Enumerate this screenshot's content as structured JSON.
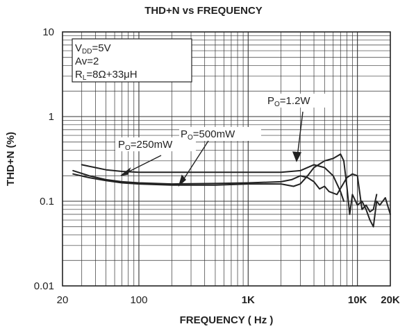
{
  "chart_data": {
    "type": "line",
    "title": "THD+N vs FREQUENCY",
    "xlabel": "FREQUENCY ( Hz )",
    "ylabel": "THD+N (%)",
    "x_scale": "log",
    "y_scale": "log",
    "xlim": [
      20,
      20000
    ],
    "ylim": [
      0.01,
      10
    ],
    "x_ticks": [
      {
        "value": 20,
        "label": "20"
      },
      {
        "value": 100,
        "label": "100"
      },
      {
        "value": 1000,
        "label": "1K"
      },
      {
        "value": 10000,
        "label": "10K"
      },
      {
        "value": 20000,
        "label": "20K"
      }
    ],
    "y_ticks": [
      {
        "value": 0.01,
        "label": "0.01"
      },
      {
        "value": 0.1,
        "label": "0.1"
      },
      {
        "value": 1,
        "label": "1"
      },
      {
        "value": 10,
        "label": "10"
      }
    ],
    "grid": true,
    "conditions": {
      "vdd_sym": "V",
      "vdd_sub": "DD",
      "vdd_val": "=5V",
      "av": "Av=2",
      "rl_sym": "R",
      "rl_sub": "L",
      "rl_val": "=8Ω+33μH"
    },
    "series": [
      {
        "label_sym": "P",
        "label_sub": "O",
        "label_val": "=250mW",
        "points": [
          [
            30,
            0.27
          ],
          [
            40,
            0.25
          ],
          [
            50,
            0.235
          ],
          [
            70,
            0.225
          ],
          [
            100,
            0.22
          ],
          [
            200,
            0.22
          ],
          [
            500,
            0.22
          ],
          [
            1000,
            0.22
          ],
          [
            2000,
            0.22
          ],
          [
            3000,
            0.23
          ],
          [
            4000,
            0.27
          ],
          [
            5000,
            0.25
          ],
          [
            6000,
            0.2
          ],
          [
            7000,
            0.13
          ],
          [
            7500,
            0.1
          ]
        ]
      },
      {
        "label_sym": "P",
        "label_sub": "O",
        "label_val": "=500mW",
        "points": [
          [
            25,
            0.23
          ],
          [
            35,
            0.2
          ],
          [
            50,
            0.18
          ],
          [
            70,
            0.17
          ],
          [
            100,
            0.165
          ],
          [
            200,
            0.16
          ],
          [
            500,
            0.162
          ],
          [
            1000,
            0.165
          ],
          [
            2000,
            0.17
          ],
          [
            2500,
            0.18
          ],
          [
            3000,
            0.2
          ],
          [
            3500,
            0.19
          ],
          [
            4000,
            0.17
          ],
          [
            4500,
            0.14
          ],
          [
            5000,
            0.15
          ],
          [
            5500,
            0.13
          ],
          [
            6500,
            0.12
          ],
          [
            8000,
            0.19
          ],
          [
            9000,
            0.21
          ],
          [
            10000,
            0.2
          ],
          [
            11000,
            0.08
          ],
          [
            12000,
            0.09
          ],
          [
            13000,
            0.075
          ],
          [
            14000,
            0.08
          ],
          [
            15000,
            0.12
          ]
        ]
      },
      {
        "label_sym": "P",
        "label_sub": "O",
        "label_val": "=1.2W",
        "points": [
          [
            25,
            0.21
          ],
          [
            35,
            0.19
          ],
          [
            50,
            0.175
          ],
          [
            70,
            0.165
          ],
          [
            100,
            0.16
          ],
          [
            200,
            0.155
          ],
          [
            500,
            0.155
          ],
          [
            1000,
            0.16
          ],
          [
            2000,
            0.16
          ],
          [
            2600,
            0.15
          ],
          [
            3000,
            0.16
          ],
          [
            3500,
            0.2
          ],
          [
            4000,
            0.25
          ],
          [
            5000,
            0.3
          ],
          [
            6000,
            0.32
          ],
          [
            7000,
            0.36
          ],
          [
            7500,
            0.3
          ],
          [
            8000,
            0.15
          ],
          [
            8500,
            0.07
          ],
          [
            9000,
            0.12
          ],
          [
            10000,
            0.09
          ],
          [
            11000,
            0.1
          ],
          [
            12000,
            0.08
          ],
          [
            13000,
            0.06
          ],
          [
            14000,
            0.05
          ],
          [
            15000,
            0.1
          ],
          [
            16000,
            0.09
          ],
          [
            18000,
            0.11
          ],
          [
            20000,
            0.07
          ]
        ]
      }
    ]
  }
}
